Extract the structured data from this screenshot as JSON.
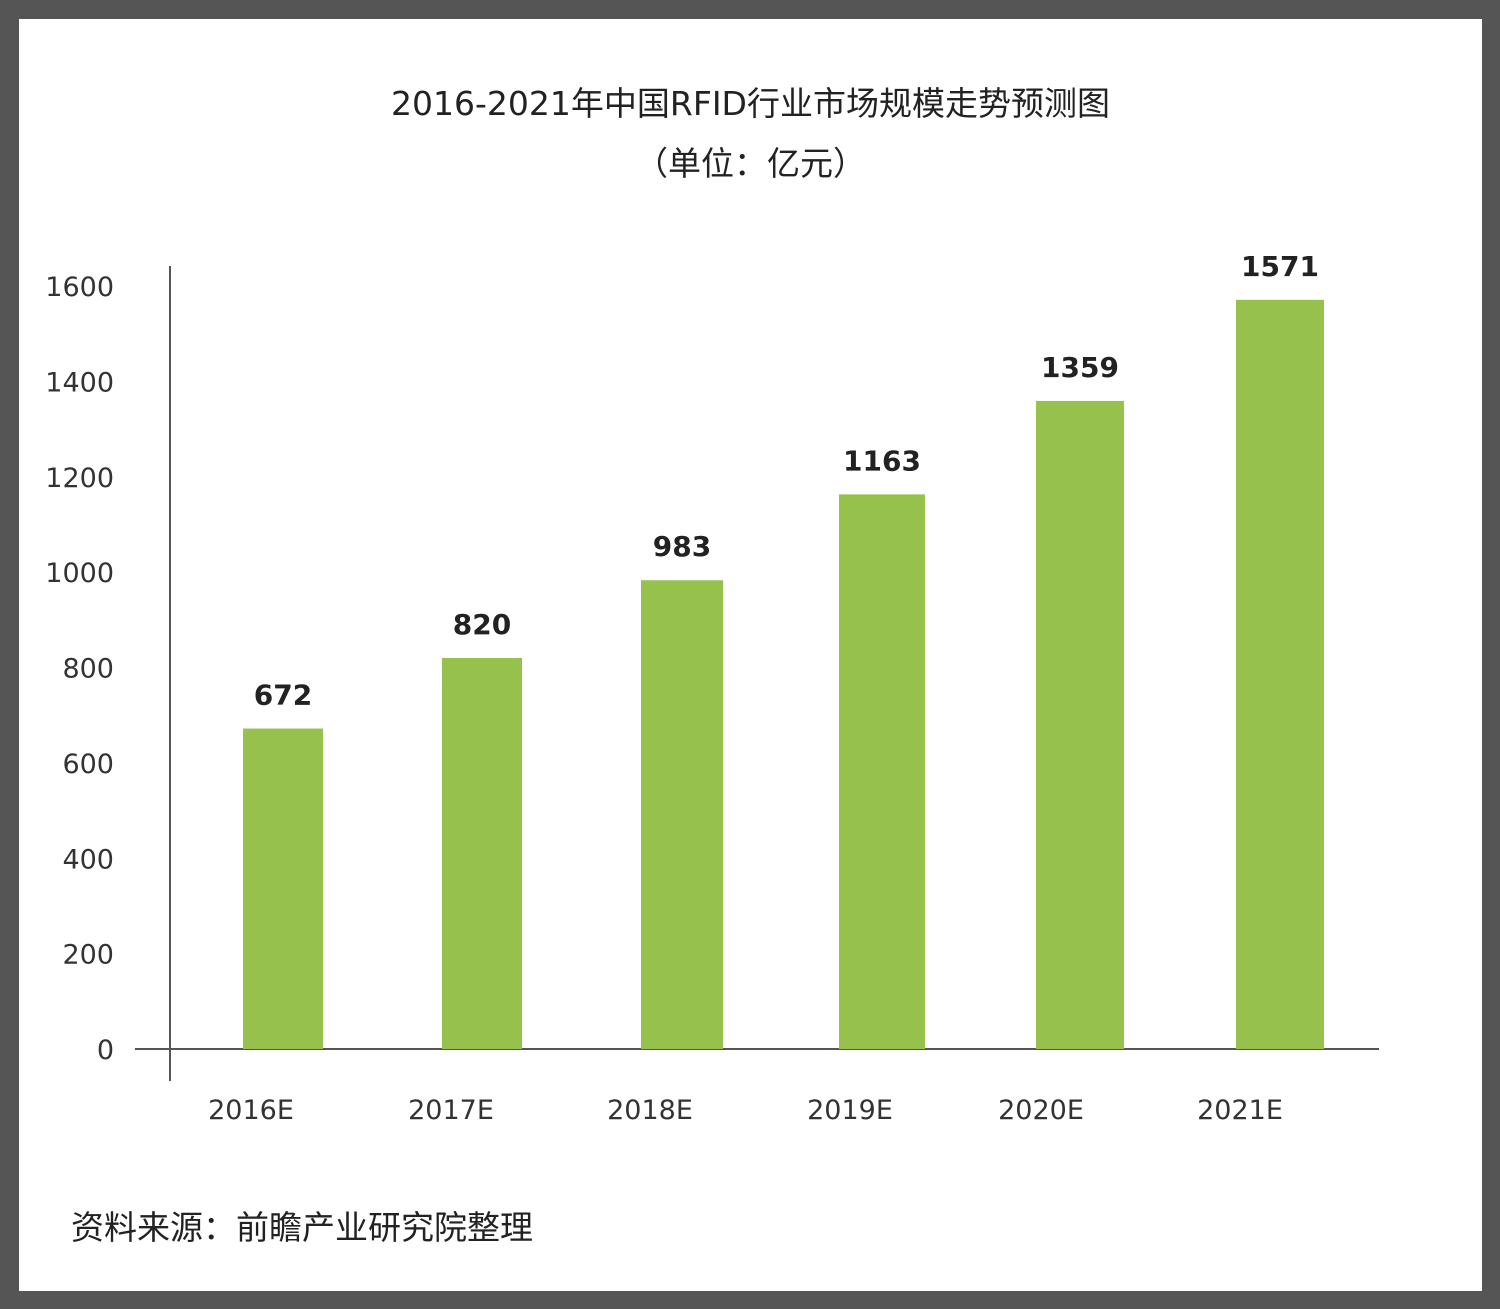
{
  "chart_data": {
    "type": "bar",
    "title": "2016-2021年中国RFID行业市场规模走势预测图",
    "subtitle": "（单位：亿元）",
    "categories": [
      "2016E",
      "2017E",
      "2018E",
      "2019E",
      "2020E",
      "2021E"
    ],
    "values": [
      672,
      820,
      983,
      1163,
      1359,
      1571
    ],
    "data_labels": [
      "672",
      "820",
      "983",
      "1163",
      "1359",
      "1571"
    ],
    "ylim": [
      0,
      1600
    ],
    "yticks": [
      "0",
      "200",
      "400",
      "600",
      "800",
      "1000",
      "1200",
      "1400",
      "1600"
    ],
    "grid": false,
    "legend": "none",
    "bar_color": "#97c14d"
  },
  "source_note": "资料来源：前瞻产业研究院整理"
}
